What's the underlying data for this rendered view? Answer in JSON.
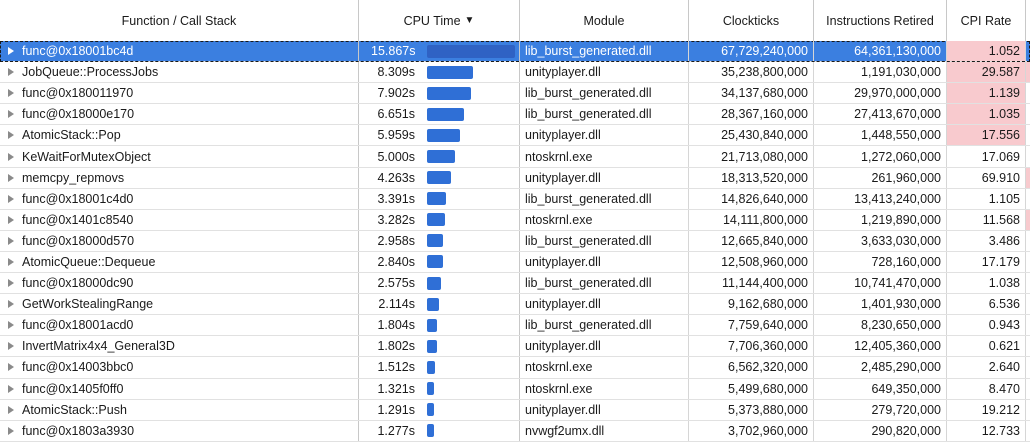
{
  "columns": {
    "function": "Function / Call Stack",
    "cpu_time": "CPU Time",
    "cpu_sort_arrow": "▼",
    "module": "Module",
    "clockticks": "Clockticks",
    "instructions": "Instructions Retired",
    "cpi": "CPI Rate"
  },
  "max_cpu_seconds": 15.867,
  "colors": {
    "bar": "#2f6fd6",
    "selected_row": "#3b7fe0",
    "cpi_highlight": "#f8cace"
  },
  "rows": [
    {
      "func": "func@0x18001bc4d",
      "cpu": "15.867s",
      "cpu_seconds": 15.867,
      "module": "lib_burst_generated.dll",
      "clockticks": "67,729,240,000",
      "instructions": "64,361,130,000",
      "cpi": "1.052",
      "cpi_highlight": true,
      "edge_highlight": false,
      "selected": true
    },
    {
      "func": "JobQueue::ProcessJobs",
      "cpu": "8.309s",
      "cpu_seconds": 8.309,
      "module": "unityplayer.dll",
      "clockticks": "35,238,800,000",
      "instructions": "1,191,030,000",
      "cpi": "29.587",
      "cpi_highlight": true,
      "edge_highlight": true,
      "selected": false
    },
    {
      "func": "func@0x180011970",
      "cpu": "7.902s",
      "cpu_seconds": 7.902,
      "module": "lib_burst_generated.dll",
      "clockticks": "34,137,680,000",
      "instructions": "29,970,000,000",
      "cpi": "1.139",
      "cpi_highlight": true,
      "edge_highlight": false,
      "selected": false
    },
    {
      "func": "func@0x18000e170",
      "cpu": "6.651s",
      "cpu_seconds": 6.651,
      "module": "lib_burst_generated.dll",
      "clockticks": "28,367,160,000",
      "instructions": "27,413,670,000",
      "cpi": "1.035",
      "cpi_highlight": true,
      "edge_highlight": false,
      "selected": false
    },
    {
      "func": "AtomicStack::Pop",
      "cpu": "5.959s",
      "cpu_seconds": 5.959,
      "module": "unityplayer.dll",
      "clockticks": "25,430,840,000",
      "instructions": "1,448,550,000",
      "cpi": "17.556",
      "cpi_highlight": true,
      "edge_highlight": false,
      "selected": false
    },
    {
      "func": "KeWaitForMutexObject",
      "cpu": "5.000s",
      "cpu_seconds": 5.0,
      "module": "ntoskrnl.exe",
      "clockticks": "21,713,080,000",
      "instructions": "1,272,060,000",
      "cpi": "17.069",
      "cpi_highlight": false,
      "edge_highlight": false,
      "selected": false
    },
    {
      "func": "memcpy_repmovs",
      "cpu": "4.263s",
      "cpu_seconds": 4.263,
      "module": "unityplayer.dll",
      "clockticks": "18,313,520,000",
      "instructions": "261,960,000",
      "cpi": "69.910",
      "cpi_highlight": false,
      "edge_highlight": true,
      "selected": false
    },
    {
      "func": "func@0x18001c4d0",
      "cpu": "3.391s",
      "cpu_seconds": 3.391,
      "module": "lib_burst_generated.dll",
      "clockticks": "14,826,640,000",
      "instructions": "13,413,240,000",
      "cpi": "1.105",
      "cpi_highlight": false,
      "edge_highlight": false,
      "selected": false
    },
    {
      "func": "func@0x1401c8540",
      "cpu": "3.282s",
      "cpu_seconds": 3.282,
      "module": "ntoskrnl.exe",
      "clockticks": "14,111,800,000",
      "instructions": "1,219,890,000",
      "cpi": "11.568",
      "cpi_highlight": false,
      "edge_highlight": true,
      "selected": false
    },
    {
      "func": "func@0x18000d570",
      "cpu": "2.958s",
      "cpu_seconds": 2.958,
      "module": "lib_burst_generated.dll",
      "clockticks": "12,665,840,000",
      "instructions": "3,633,030,000",
      "cpi": "3.486",
      "cpi_highlight": false,
      "edge_highlight": false,
      "selected": false
    },
    {
      "func": "AtomicQueue::Dequeue",
      "cpu": "2.840s",
      "cpu_seconds": 2.84,
      "module": "unityplayer.dll",
      "clockticks": "12,508,960,000",
      "instructions": "728,160,000",
      "cpi": "17.179",
      "cpi_highlight": false,
      "edge_highlight": false,
      "selected": false
    },
    {
      "func": "func@0x18000dc90",
      "cpu": "2.575s",
      "cpu_seconds": 2.575,
      "module": "lib_burst_generated.dll",
      "clockticks": "11,144,400,000",
      "instructions": "10,741,470,000",
      "cpi": "1.038",
      "cpi_highlight": false,
      "edge_highlight": false,
      "selected": false
    },
    {
      "func": "GetWorkStealingRange",
      "cpu": "2.114s",
      "cpu_seconds": 2.114,
      "module": "unityplayer.dll",
      "clockticks": "9,162,680,000",
      "instructions": "1,401,930,000",
      "cpi": "6.536",
      "cpi_highlight": false,
      "edge_highlight": false,
      "selected": false
    },
    {
      "func": "func@0x18001acd0",
      "cpu": "1.804s",
      "cpu_seconds": 1.804,
      "module": "lib_burst_generated.dll",
      "clockticks": "7,759,640,000",
      "instructions": "8,230,650,000",
      "cpi": "0.943",
      "cpi_highlight": false,
      "edge_highlight": false,
      "selected": false
    },
    {
      "func": "InvertMatrix4x4_General3D",
      "cpu": "1.802s",
      "cpu_seconds": 1.802,
      "module": "unityplayer.dll",
      "clockticks": "7,706,360,000",
      "instructions": "12,405,360,000",
      "cpi": "0.621",
      "cpi_highlight": false,
      "edge_highlight": false,
      "selected": false
    },
    {
      "func": "func@0x14003bbc0",
      "cpu": "1.512s",
      "cpu_seconds": 1.512,
      "module": "ntoskrnl.exe",
      "clockticks": "6,562,320,000",
      "instructions": "2,485,290,000",
      "cpi": "2.640",
      "cpi_highlight": false,
      "edge_highlight": false,
      "selected": false
    },
    {
      "func": "func@0x1405f0ff0",
      "cpu": "1.321s",
      "cpu_seconds": 1.321,
      "module": "ntoskrnl.exe",
      "clockticks": "5,499,680,000",
      "instructions": "649,350,000",
      "cpi": "8.470",
      "cpi_highlight": false,
      "edge_highlight": false,
      "selected": false
    },
    {
      "func": "AtomicStack::Push",
      "cpu": "1.291s",
      "cpu_seconds": 1.291,
      "module": "unityplayer.dll",
      "clockticks": "5,373,880,000",
      "instructions": "279,720,000",
      "cpi": "19.212",
      "cpi_highlight": false,
      "edge_highlight": false,
      "selected": false
    },
    {
      "func": "func@0x1803a3930",
      "cpu": "1.277s",
      "cpu_seconds": 1.277,
      "module": "nvwgf2umx.dll",
      "clockticks": "3,702,960,000",
      "instructions": "290,820,000",
      "cpi": "12.733",
      "cpi_highlight": false,
      "edge_highlight": false,
      "selected": false
    }
  ]
}
